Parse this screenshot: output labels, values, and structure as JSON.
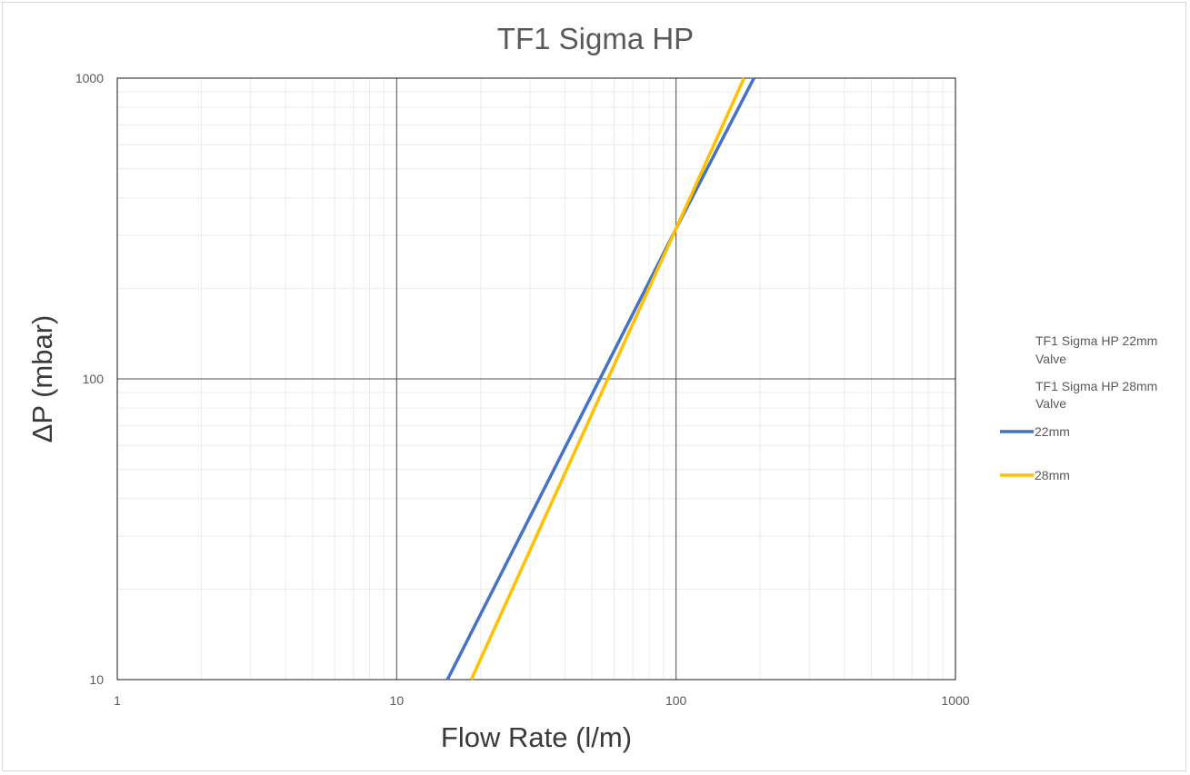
{
  "chart_data": {
    "type": "line",
    "title": "TF1 Sigma HP",
    "xlabel": "Flow Rate (l/m)",
    "ylabel": "ΔP (mbar)",
    "x_scale": "log",
    "y_scale": "log",
    "xlim": [
      1,
      1000
    ],
    "ylim": [
      10,
      1000
    ],
    "x_ticks": [
      "1",
      "10",
      "100",
      "1000"
    ],
    "y_ticks": [
      "10",
      "100",
      "1000"
    ],
    "grid": true,
    "legend_position": "right",
    "legend_notes": [
      "TF1 Sigma HP 22mm Valve",
      "TF1 Sigma HP 28mm Valve"
    ],
    "series": [
      {
        "name": "22mm",
        "color": "#4472c4",
        "points": [
          [
            15.2,
            10
          ],
          [
            100,
            316
          ],
          [
            190,
            1000
          ]
        ]
      },
      {
        "name": "28mm",
        "color": "#ffc000",
        "points": [
          [
            18.5,
            10
          ],
          [
            100,
            316
          ],
          [
            175,
            1000
          ]
        ]
      }
    ]
  }
}
